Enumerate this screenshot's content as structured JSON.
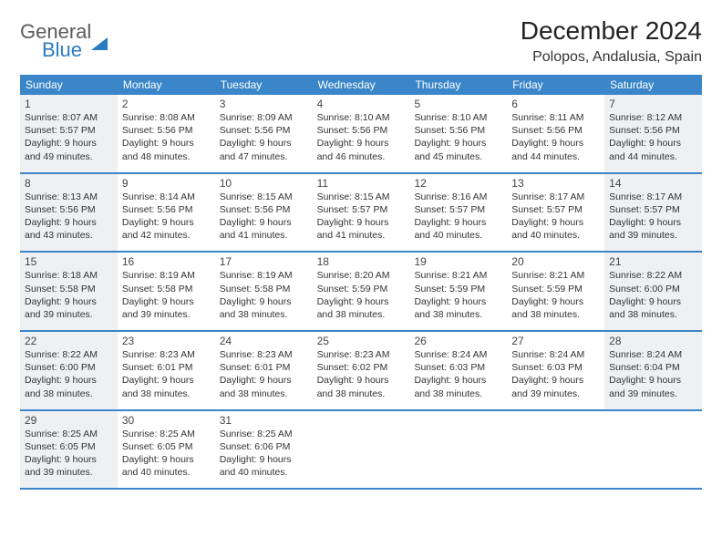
{
  "logo": {
    "line1": "General",
    "line2": "Blue"
  },
  "title": "December 2024",
  "location": "Polopos, Andalusia, Spain",
  "colors": {
    "header_bg": "#3a86c8",
    "header_text": "#ffffff",
    "shaded_bg": "#eef0f2",
    "border": "#3a86c8",
    "logo_gray": "#5a5a5a",
    "logo_blue": "#2a7bbf",
    "background": "#ffffff"
  },
  "weekdays": [
    "Sunday",
    "Monday",
    "Tuesday",
    "Wednesday",
    "Thursday",
    "Friday",
    "Saturday"
  ],
  "weeks": [
    [
      {
        "n": 1,
        "shaded": true,
        "sr": "8:07 AM",
        "ss": "5:57 PM",
        "dl": "9 hours and 49 minutes."
      },
      {
        "n": 2,
        "shaded": false,
        "sr": "8:08 AM",
        "ss": "5:56 PM",
        "dl": "9 hours and 48 minutes."
      },
      {
        "n": 3,
        "shaded": false,
        "sr": "8:09 AM",
        "ss": "5:56 PM",
        "dl": "9 hours and 47 minutes."
      },
      {
        "n": 4,
        "shaded": false,
        "sr": "8:10 AM",
        "ss": "5:56 PM",
        "dl": "9 hours and 46 minutes."
      },
      {
        "n": 5,
        "shaded": false,
        "sr": "8:10 AM",
        "ss": "5:56 PM",
        "dl": "9 hours and 45 minutes."
      },
      {
        "n": 6,
        "shaded": false,
        "sr": "8:11 AM",
        "ss": "5:56 PM",
        "dl": "9 hours and 44 minutes."
      },
      {
        "n": 7,
        "shaded": true,
        "sr": "8:12 AM",
        "ss": "5:56 PM",
        "dl": "9 hours and 44 minutes."
      }
    ],
    [
      {
        "n": 8,
        "shaded": true,
        "sr": "8:13 AM",
        "ss": "5:56 PM",
        "dl": "9 hours and 43 minutes."
      },
      {
        "n": 9,
        "shaded": false,
        "sr": "8:14 AM",
        "ss": "5:56 PM",
        "dl": "9 hours and 42 minutes."
      },
      {
        "n": 10,
        "shaded": false,
        "sr": "8:15 AM",
        "ss": "5:56 PM",
        "dl": "9 hours and 41 minutes."
      },
      {
        "n": 11,
        "shaded": false,
        "sr": "8:15 AM",
        "ss": "5:57 PM",
        "dl": "9 hours and 41 minutes."
      },
      {
        "n": 12,
        "shaded": false,
        "sr": "8:16 AM",
        "ss": "5:57 PM",
        "dl": "9 hours and 40 minutes."
      },
      {
        "n": 13,
        "shaded": false,
        "sr": "8:17 AM",
        "ss": "5:57 PM",
        "dl": "9 hours and 40 minutes."
      },
      {
        "n": 14,
        "shaded": true,
        "sr": "8:17 AM",
        "ss": "5:57 PM",
        "dl": "9 hours and 39 minutes."
      }
    ],
    [
      {
        "n": 15,
        "shaded": true,
        "sr": "8:18 AM",
        "ss": "5:58 PM",
        "dl": "9 hours and 39 minutes."
      },
      {
        "n": 16,
        "shaded": false,
        "sr": "8:19 AM",
        "ss": "5:58 PM",
        "dl": "9 hours and 39 minutes."
      },
      {
        "n": 17,
        "shaded": false,
        "sr": "8:19 AM",
        "ss": "5:58 PM",
        "dl": "9 hours and 38 minutes."
      },
      {
        "n": 18,
        "shaded": false,
        "sr": "8:20 AM",
        "ss": "5:59 PM",
        "dl": "9 hours and 38 minutes."
      },
      {
        "n": 19,
        "shaded": false,
        "sr": "8:21 AM",
        "ss": "5:59 PM",
        "dl": "9 hours and 38 minutes."
      },
      {
        "n": 20,
        "shaded": false,
        "sr": "8:21 AM",
        "ss": "5:59 PM",
        "dl": "9 hours and 38 minutes."
      },
      {
        "n": 21,
        "shaded": true,
        "sr": "8:22 AM",
        "ss": "6:00 PM",
        "dl": "9 hours and 38 minutes."
      }
    ],
    [
      {
        "n": 22,
        "shaded": true,
        "sr": "8:22 AM",
        "ss": "6:00 PM",
        "dl": "9 hours and 38 minutes."
      },
      {
        "n": 23,
        "shaded": false,
        "sr": "8:23 AM",
        "ss": "6:01 PM",
        "dl": "9 hours and 38 minutes."
      },
      {
        "n": 24,
        "shaded": false,
        "sr": "8:23 AM",
        "ss": "6:01 PM",
        "dl": "9 hours and 38 minutes."
      },
      {
        "n": 25,
        "shaded": false,
        "sr": "8:23 AM",
        "ss": "6:02 PM",
        "dl": "9 hours and 38 minutes."
      },
      {
        "n": 26,
        "shaded": false,
        "sr": "8:24 AM",
        "ss": "6:03 PM",
        "dl": "9 hours and 38 minutes."
      },
      {
        "n": 27,
        "shaded": false,
        "sr": "8:24 AM",
        "ss": "6:03 PM",
        "dl": "9 hours and 39 minutes."
      },
      {
        "n": 28,
        "shaded": true,
        "sr": "8:24 AM",
        "ss": "6:04 PM",
        "dl": "9 hours and 39 minutes."
      }
    ],
    [
      {
        "n": 29,
        "shaded": true,
        "sr": "8:25 AM",
        "ss": "6:05 PM",
        "dl": "9 hours and 39 minutes."
      },
      {
        "n": 30,
        "shaded": false,
        "sr": "8:25 AM",
        "ss": "6:05 PM",
        "dl": "9 hours and 40 minutes."
      },
      {
        "n": 31,
        "shaded": false,
        "sr": "8:25 AM",
        "ss": "6:06 PM",
        "dl": "9 hours and 40 minutes."
      },
      null,
      null,
      null,
      null
    ]
  ],
  "labels": {
    "sunrise_prefix": "Sunrise: ",
    "sunset_prefix": "Sunset: ",
    "daylight_prefix": "Daylight: "
  },
  "typography": {
    "title_fontsize": 28,
    "location_fontsize": 16,
    "weekday_fontsize": 12,
    "daynum_fontsize": 12,
    "info_fontsize": 10.5
  }
}
